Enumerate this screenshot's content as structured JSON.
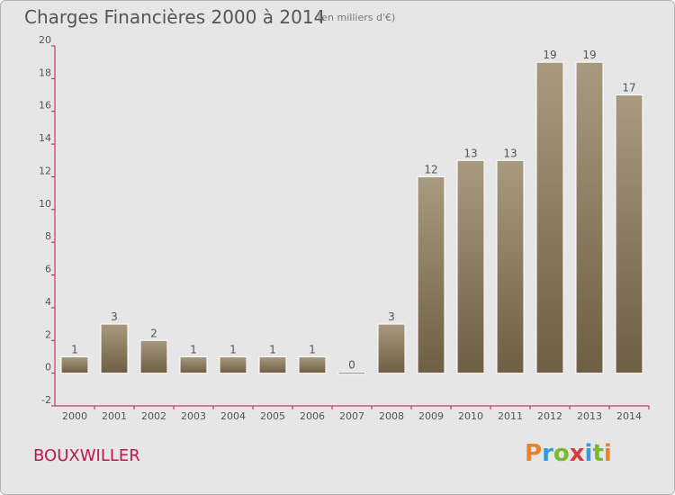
{
  "header": {
    "title": "Charges Financières 2000 à 2014",
    "subtitle": "(en milliers d'€)"
  },
  "footer": {
    "commune": "BOUXWILLER",
    "logo_text": "Proxiti",
    "logo_colors": [
      "#e7832a",
      "#3a9ad9",
      "#7ab830",
      "#d63c3c",
      "#3a9ad9",
      "#7ab830",
      "#e7832a"
    ]
  },
  "chart_data": {
    "type": "bar",
    "categories": [
      "2000",
      "2001",
      "2002",
      "2003",
      "2004",
      "2005",
      "2006",
      "2007",
      "2008",
      "2009",
      "2010",
      "2011",
      "2012",
      "2013",
      "2014"
    ],
    "values": [
      1,
      3,
      2,
      1,
      1,
      1,
      1,
      0,
      3,
      12,
      13,
      13,
      19,
      19,
      17
    ],
    "data_labels": [
      "1",
      "3",
      "2",
      "1",
      "1",
      "1",
      "1",
      "0",
      "3",
      "12",
      "13",
      "13",
      "19",
      "19",
      "17"
    ],
    "ylim": [
      -2,
      20
    ],
    "yticks": [
      -2,
      0,
      2,
      4,
      6,
      8,
      10,
      12,
      14,
      16,
      18,
      20
    ],
    "grid": false,
    "bar_color_top": "#a89a7e",
    "bar_color_bottom": "#6e5f43",
    "axis_color": "#c0164e",
    "xlabel": "",
    "ylabel": ""
  }
}
